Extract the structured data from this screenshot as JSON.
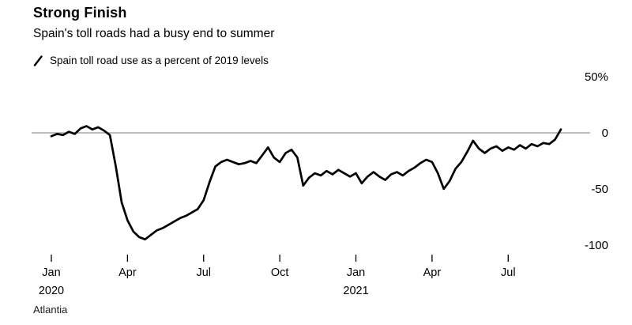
{
  "chart_data": {
    "type": "line",
    "title": "Strong Finish",
    "subtitle": "Spain's toll roads had a busy end to summer",
    "legend": "Spain toll road use as a percent of 2019 levels",
    "source": "Atlantia",
    "x_unit": "week",
    "ylim": [
      -110,
      55
    ],
    "colors": {
      "line": "#000000",
      "zero_line": "#7b7b7b",
      "text": "#000000"
    },
    "yticks": [
      {
        "value": 50,
        "label": "50%"
      },
      {
        "value": 0,
        "label": "0"
      },
      {
        "value": -50,
        "label": "-50"
      },
      {
        "value": -100,
        "label": "-100"
      }
    ],
    "xticks": [
      {
        "week": 0,
        "label": "Jan",
        "sublabel": "2020"
      },
      {
        "week": 13,
        "label": "Apr"
      },
      {
        "week": 26,
        "label": "Jul"
      },
      {
        "week": 39,
        "label": "Oct"
      },
      {
        "week": 52,
        "label": "Jan",
        "sublabel": "2021"
      },
      {
        "week": 65,
        "label": "Apr"
      },
      {
        "week": 78,
        "label": "Jul"
      }
    ],
    "values": [
      -3,
      -1,
      -2,
      1,
      -1,
      4,
      6,
      3,
      5,
      2,
      -2,
      -30,
      -62,
      -78,
      -88,
      -93,
      -95,
      -91,
      -87,
      -85,
      -82,
      -79,
      -76,
      -74,
      -71,
      -68,
      -60,
      -44,
      -30,
      -26,
      -24,
      -26,
      -28,
      -27,
      -25,
      -27,
      -20,
      -13,
      -22,
      -26,
      -18,
      -15,
      -22,
      -47,
      -40,
      -36,
      -38,
      -34,
      -37,
      -33,
      -36,
      -39,
      -36,
      -45,
      -39,
      -35,
      -39,
      -42,
      -37,
      -35,
      -38,
      -34,
      -31,
      -27,
      -24,
      -26,
      -36,
      -50,
      -43,
      -32,
      -26,
      -17,
      -7,
      -14,
      -18,
      -14,
      -12,
      -16,
      -13,
      -15,
      -11,
      -14,
      -10,
      -12,
      -9,
      -10,
      -6,
      3
    ]
  }
}
